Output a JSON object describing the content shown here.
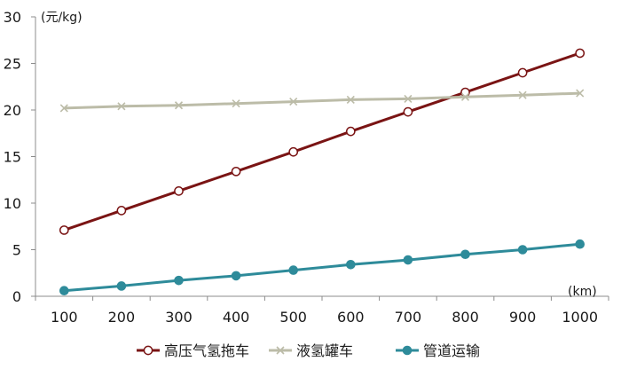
{
  "chart_data": {
    "type": "line",
    "title": "",
    "xlabel": "(km)",
    "ylabel": "(元/kg)",
    "x": [
      100,
      200,
      300,
      400,
      500,
      600,
      700,
      800,
      900,
      1000
    ],
    "ylim": [
      0,
      30
    ],
    "yticks": [
      0,
      5,
      10,
      15,
      20,
      25,
      30
    ],
    "grid": false,
    "legend_position": "bottom",
    "series": [
      {
        "name": "高压气氢拖车",
        "color": "#7a1414",
        "marker": "open-circle",
        "values": [
          7.1,
          9.2,
          11.3,
          13.4,
          15.5,
          17.7,
          19.8,
          21.9,
          24.0,
          26.1
        ]
      },
      {
        "name": "液氢罐车",
        "color": "#bcbca8",
        "marker": "x",
        "values": [
          20.2,
          20.4,
          20.5,
          20.7,
          20.9,
          21.1,
          21.2,
          21.4,
          21.6,
          21.8
        ]
      },
      {
        "name": "管道运输",
        "color": "#2e8b9a",
        "marker": "filled-circle",
        "values": [
          0.6,
          1.1,
          1.7,
          2.2,
          2.8,
          3.4,
          3.9,
          4.5,
          5.0,
          5.6
        ]
      }
    ]
  }
}
